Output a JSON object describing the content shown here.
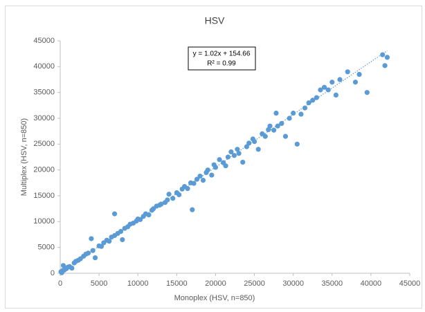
{
  "chart_data": {
    "type": "scatter",
    "title": "HSV",
    "x_label": "Monoplex (HSV, n=850)",
    "y_label": "Multiplex (HSV, n=850)",
    "color": "#5b9bd5",
    "grid": false,
    "xlim": [
      0,
      45000
    ],
    "ylim": [
      0,
      45000
    ],
    "xticks": [
      0,
      5000,
      10000,
      15000,
      20000,
      25000,
      30000,
      35000,
      40000,
      45000
    ],
    "yticks": [
      0,
      5000,
      10000,
      15000,
      20000,
      25000,
      30000,
      35000,
      40000,
      45000
    ],
    "trendline": {
      "equation": "y = 1.02x + 154.66",
      "r2": "R² = 0.99",
      "slope": 1.02,
      "intercept": 154.66
    },
    "x": [
      100,
      200,
      300,
      400,
      500,
      600,
      800,
      1000,
      1200,
      1500,
      1800,
      2000,
      2300,
      2600,
      3000,
      3300,
      3600,
      4000,
      4200,
      4500,
      5000,
      5300,
      5600,
      6000,
      6300,
      6600,
      7000,
      7000,
      7400,
      7800,
      8000,
      8300,
      8700,
      9000,
      9400,
      9800,
      10000,
      10300,
      10700,
      11000,
      11400,
      11800,
      12000,
      12400,
      12800,
      13000,
      13500,
      13800,
      14000,
      14500,
      15000,
      15300,
      15700,
      16000,
      16400,
      16800,
      17000,
      17200,
      17600,
      18000,
      18400,
      18800,
      19000,
      19500,
      19800,
      20000,
      20500,
      21000,
      21300,
      21600,
      22000,
      22400,
      22800,
      23000,
      23500,
      24000,
      24300,
      24800,
      25000,
      25500,
      26000,
      26400,
      26800,
      27000,
      27500,
      27800,
      28000,
      28500,
      29000,
      29500,
      30000,
      30500,
      31000,
      31500,
      32000,
      32500,
      33000,
      33500,
      34000,
      34500,
      35000,
      35500,
      36000,
      37000,
      38000,
      38500,
      39500,
      41500,
      41800,
      42100
    ],
    "y": [
      300,
      100,
      500,
      1500,
      600,
      800,
      900,
      1200,
      1300,
      1000,
      2000,
      2300,
      2500,
      2800,
      3300,
      3700,
      3900,
      6700,
      4400,
      3000,
      5300,
      5200,
      5900,
      6400,
      6200,
      7000,
      11500,
      7300,
      7700,
      8100,
      6500,
      8700,
      9000,
      9500,
      9700,
      10100,
      10500,
      10400,
      11000,
      11500,
      11300,
      12200,
      12500,
      13000,
      13200,
      13400,
      13700,
      14200,
      15300,
      14500,
      15600,
      15200,
      16300,
      16800,
      16400,
      17500,
      12300,
      17400,
      18200,
      18800,
      18000,
      19500,
      20000,
      19000,
      21000,
      20500,
      22000,
      21400,
      20800,
      22500,
      23500,
      22800,
      24000,
      23200,
      21500,
      24500,
      25200,
      26000,
      25500,
      24000,
      27000,
      26500,
      27800,
      28500,
      27700,
      31000,
      28500,
      29000,
      26500,
      30000,
      31000,
      25000,
      30800,
      32000,
      33000,
      33500,
      34000,
      35500,
      36000,
      35500,
      37000,
      34500,
      37500,
      39000,
      37000,
      38500,
      35000,
      42300,
      40200,
      41800
    ]
  }
}
